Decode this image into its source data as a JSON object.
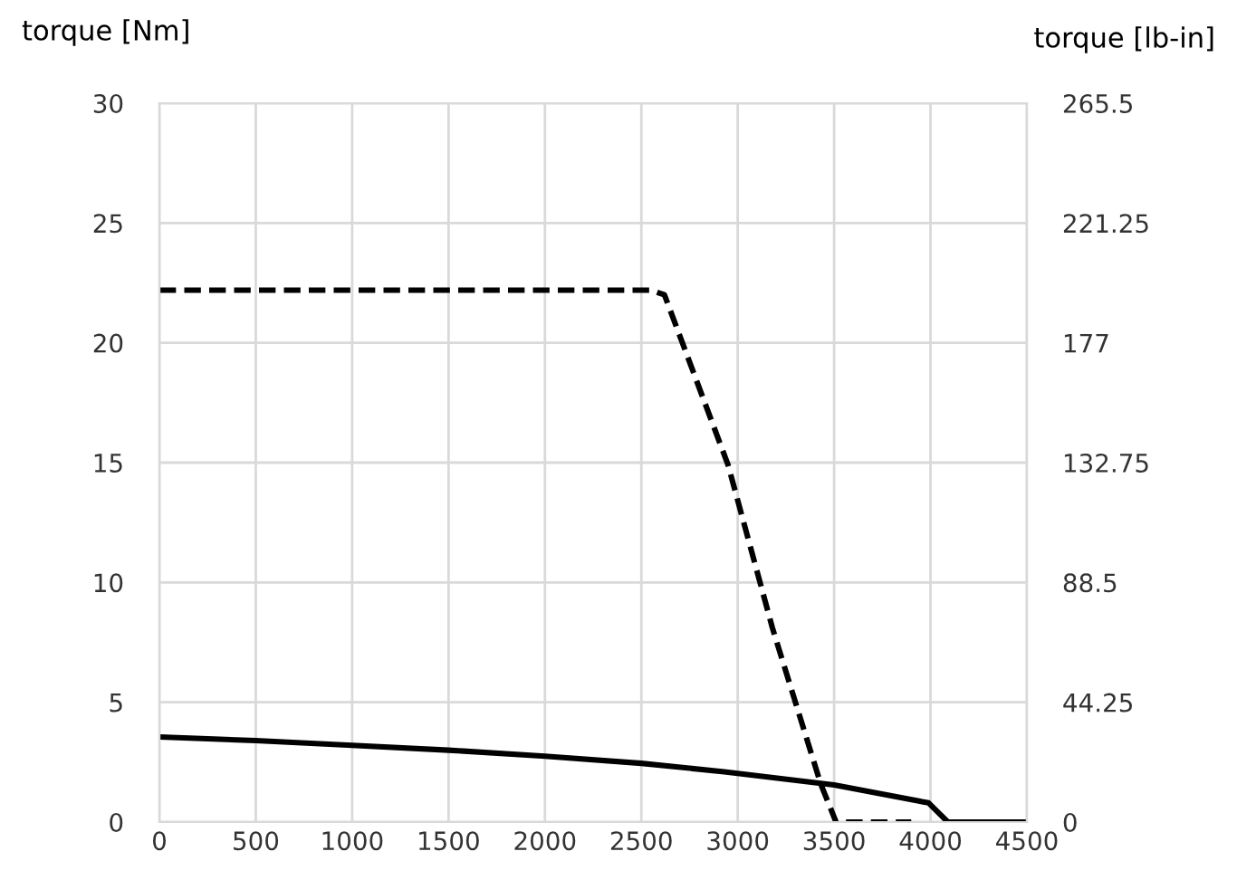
{
  "chart_data": {
    "type": "line",
    "ylabel": "torque [Nm]",
    "y2label": "torque [lb-in]",
    "xlim": [
      0,
      4500
    ],
    "xticks": [
      0,
      500,
      1000,
      1500,
      2000,
      2500,
      3000,
      3500,
      4000,
      4500
    ],
    "ylim": [
      0,
      30
    ],
    "yticks": [
      0,
      5,
      10,
      15,
      20,
      25,
      30
    ],
    "y2lim": [
      0,
      265.5
    ],
    "y2ticks": [
      0,
      44.25,
      88.5,
      132.75,
      177,
      221.25,
      265.5
    ],
    "grid": true,
    "series": [
      {
        "color": "#000000",
        "line_style": "dashed",
        "x": [
          0,
          2550,
          2620,
          2950,
          3180,
          3430,
          3510,
          3900
        ],
        "values": [
          22.2,
          22.2,
          22.0,
          14.9,
          8.1,
          1.6,
          0,
          0
        ]
      },
      {
        "color": "#000000",
        "line_style": "solid",
        "x": [
          0,
          500,
          1000,
          1500,
          2000,
          2500,
          2930,
          3500,
          3990,
          4090,
          4500
        ],
        "values": [
          3.55,
          3.4,
          3.2,
          3.0,
          2.75,
          2.45,
          2.1,
          1.55,
          0.8,
          0,
          0
        ]
      }
    ]
  }
}
